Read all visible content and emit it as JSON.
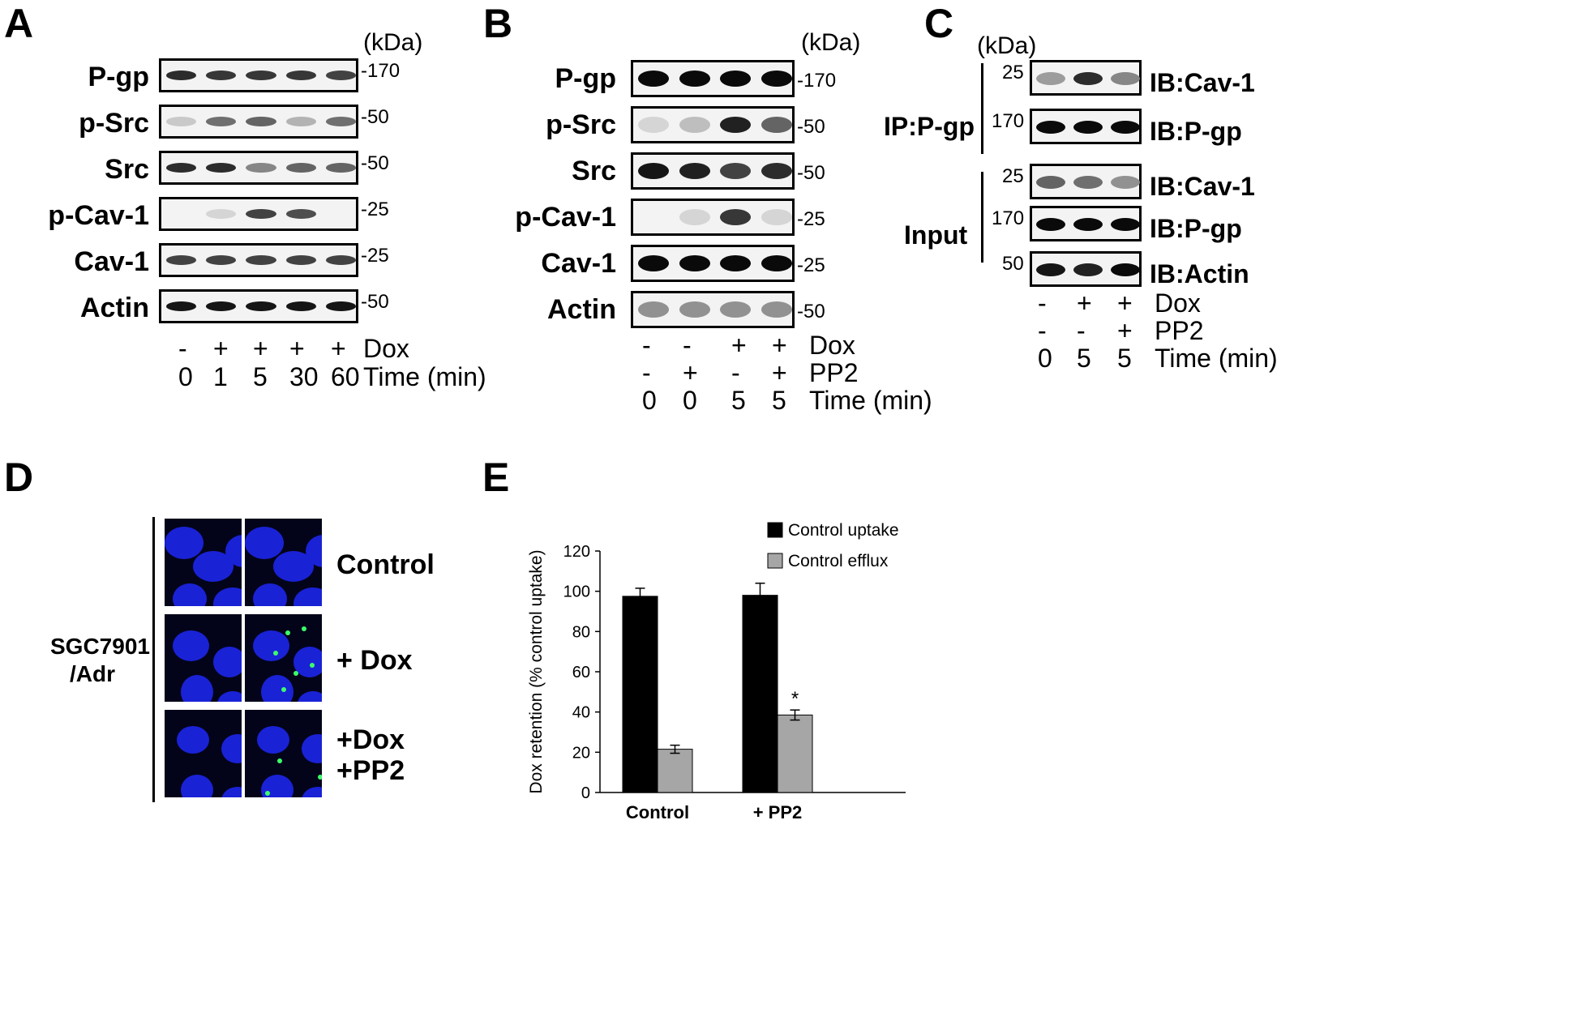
{
  "panels": {
    "A": {
      "letter": "A",
      "kda": "(kDa)",
      "rows": [
        {
          "label": "P-gp",
          "mw": "-170",
          "intensity": [
            0.85,
            0.8,
            0.8,
            0.8,
            0.75
          ]
        },
        {
          "label": "p-Src",
          "mw": "-50",
          "intensity": [
            0.15,
            0.55,
            0.6,
            0.25,
            0.55
          ]
        },
        {
          "label": "Src",
          "mw": "-50",
          "intensity": [
            0.85,
            0.85,
            0.45,
            0.6,
            0.6
          ]
        },
        {
          "label": "p-Cav-1",
          "mw": "-25",
          "intensity": [
            0.0,
            0.1,
            0.75,
            0.7,
            0.0
          ]
        },
        {
          "label": "Cav-1",
          "mw": "-25",
          "intensity": [
            0.75,
            0.75,
            0.75,
            0.75,
            0.75
          ]
        },
        {
          "label": "Actin",
          "mw": "-50",
          "intensity": [
            0.95,
            0.95,
            0.95,
            0.95,
            0.95
          ]
        }
      ],
      "dox": {
        "values": [
          "-",
          "+",
          "+",
          "+",
          "+"
        ],
        "label": "Dox"
      },
      "time": {
        "values": [
          "0",
          "1",
          "5",
          "30",
          "60"
        ],
        "label": "Time (min)"
      }
    },
    "B": {
      "letter": "B",
      "kda": "(kDa)",
      "rows": [
        {
          "label": "P-gp",
          "mw": "-170",
          "intensity": [
            1,
            1,
            1,
            1
          ]
        },
        {
          "label": "p-Src",
          "mw": "-50",
          "intensity": [
            0.1,
            0.2,
            0.9,
            0.6
          ]
        },
        {
          "label": "Src",
          "mw": "-50",
          "intensity": [
            0.95,
            0.9,
            0.75,
            0.85
          ]
        },
        {
          "label": "p-Cav-1",
          "mw": "-25",
          "intensity": [
            0.0,
            0.1,
            0.8,
            0.1
          ]
        },
        {
          "label": "Cav-1",
          "mw": "-25",
          "intensity": [
            1,
            1,
            1,
            1
          ]
        },
        {
          "label": "Actin",
          "mw": "-50",
          "intensity": [
            0.4,
            0.4,
            0.4,
            0.4
          ]
        }
      ],
      "dox": {
        "values": [
          "-",
          "-",
          "+",
          "+"
        ],
        "label": "Dox"
      },
      "pp2": {
        "values": [
          "-",
          "+",
          "-",
          "+"
        ],
        "label": "PP2"
      },
      "time": {
        "values": [
          "0",
          "0",
          "5",
          "5"
        ],
        "label": "Time (min)"
      }
    },
    "C": {
      "letter": "C",
      "kda": "(kDa)",
      "ip_label": "IP:P-gp",
      "input_label": "Input",
      "rows": [
        {
          "mw": "25",
          "ib": "IB:Cav-1",
          "intensity": [
            0.35,
            0.85,
            0.45
          ]
        },
        {
          "mw": "170",
          "ib": "IB:P-gp",
          "intensity": [
            1,
            1,
            1
          ]
        },
        {
          "mw": "25",
          "ib": "IB:Cav-1",
          "intensity": [
            0.6,
            0.55,
            0.4
          ]
        },
        {
          "mw": "170",
          "ib": "IB:P-gp",
          "intensity": [
            1,
            1,
            1
          ]
        },
        {
          "mw": "50",
          "ib": "IB:Actin",
          "intensity": [
            0.95,
            0.9,
            1
          ]
        }
      ],
      "dox": {
        "values": [
          "-",
          "+",
          "+"
        ],
        "label": "Dox"
      },
      "pp2": {
        "values": [
          "-",
          "-",
          "+"
        ],
        "label": "PP2"
      },
      "time": {
        "values": [
          "0",
          "5",
          "5"
        ],
        "label": "Time (min)"
      }
    },
    "D": {
      "letter": "D",
      "cell_line_line1": "SGC7901",
      "cell_line_line2": "/Adr",
      "rows": [
        {
          "label1": "Control",
          "label2": ""
        },
        {
          "label1": "+ Dox",
          "label2": ""
        },
        {
          "label1": "+Dox",
          "label2": "+PP2"
        }
      ]
    },
    "E": {
      "letter": "E"
    }
  },
  "chart_data": {
    "type": "bar",
    "title": "",
    "categories": [
      "Control",
      "+ PP2"
    ],
    "series": [
      {
        "name": "Control uptake",
        "values": [
          97.5,
          98.0
        ],
        "errors": [
          4,
          6
        ],
        "color": "#000000"
      },
      {
        "name": "Control efflux",
        "values": [
          21.5,
          38.5
        ],
        "errors": [
          2,
          2.5
        ],
        "color": "#a6a6a6"
      }
    ],
    "annotations": [
      {
        "category": "+ PP2",
        "series": "Control efflux",
        "text": "*"
      }
    ],
    "xlabel": "",
    "ylabel": "Dox retention (% control uptake)",
    "ylim": [
      0,
      120
    ],
    "yticks": [
      0,
      20,
      40,
      60,
      80,
      100,
      120
    ],
    "grid": false,
    "legend": "top-right"
  }
}
